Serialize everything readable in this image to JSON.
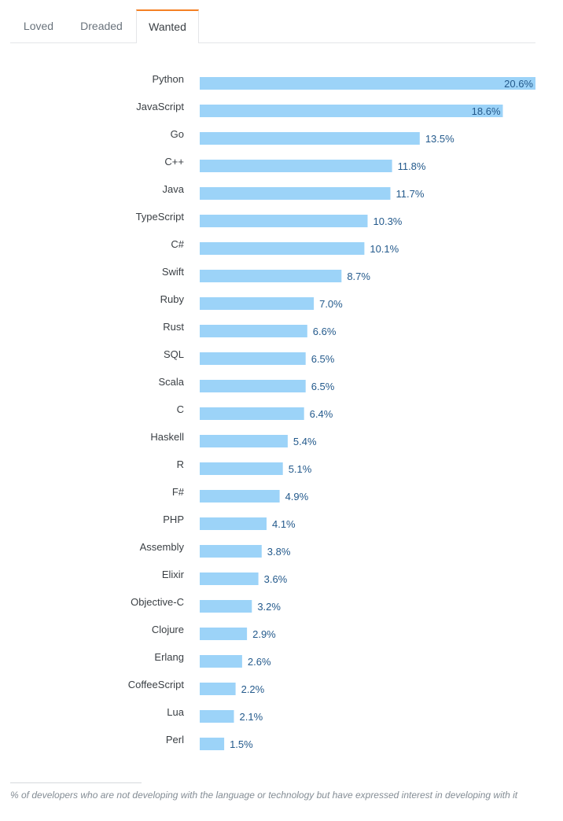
{
  "tabs": [
    {
      "label": "Loved",
      "active": false
    },
    {
      "label": "Dreaded",
      "active": false
    },
    {
      "label": "Wanted",
      "active": true
    }
  ],
  "colors": {
    "bar": "#9cd3f8",
    "label_text": "#3b4045",
    "value_text": "#245a8c",
    "active_tab_accent": "#f48024"
  },
  "chart_data": {
    "type": "bar",
    "orientation": "horizontal",
    "title": "",
    "xlabel": "",
    "ylabel": "",
    "unit": "%",
    "xlim": [
      0,
      20.6
    ],
    "grid": false,
    "legend": "none",
    "categories": [
      "Python",
      "JavaScript",
      "Go",
      "C++",
      "Java",
      "TypeScript",
      "C#",
      "Swift",
      "Ruby",
      "Rust",
      "SQL",
      "Scala",
      "C",
      "Haskell",
      "R",
      "F#",
      "PHP",
      "Assembly",
      "Elixir",
      "Objective-C",
      "Clojure",
      "Erlang",
      "CoffeeScript",
      "Lua",
      "Perl"
    ],
    "values": [
      20.6,
      18.6,
      13.5,
      11.8,
      11.7,
      10.3,
      10.1,
      8.7,
      7.0,
      6.6,
      6.5,
      6.5,
      6.4,
      5.4,
      5.1,
      4.9,
      4.1,
      3.8,
      3.6,
      3.2,
      2.9,
      2.6,
      2.2,
      2.1,
      1.5
    ],
    "value_labels": [
      "20.6%",
      "18.6%",
      "13.5%",
      "11.8%",
      "11.7%",
      "10.3%",
      "10.1%",
      "8.7%",
      "7.0%",
      "6.6%",
      "6.5%",
      "6.5%",
      "6.4%",
      "5.4%",
      "5.1%",
      "4.9%",
      "4.1%",
      "3.8%",
      "3.6%",
      "3.2%",
      "2.9%",
      "2.6%",
      "2.2%",
      "2.1%",
      "1.5%"
    ]
  },
  "footnote": "% of developers who are not developing with the language or technology but have expressed interest in developing with it"
}
